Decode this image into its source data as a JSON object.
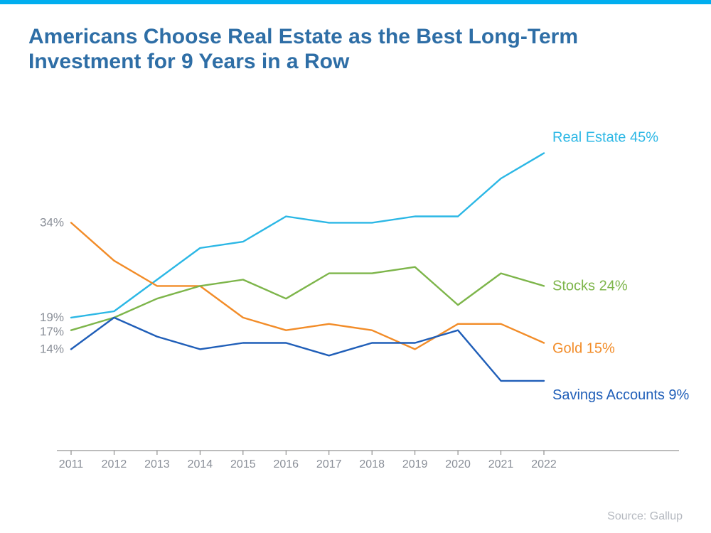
{
  "accent_bar_color": "#00aeef",
  "title": {
    "text": "Americans Choose Real Estate as the Best Long-Term Investment for 9 Years in a Row",
    "color": "#2e6ea6",
    "fontsize_pt": 30
  },
  "chart": {
    "type": "line",
    "years": [
      2011,
      2012,
      2013,
      2014,
      2015,
      2016,
      2017,
      2018,
      2019,
      2020,
      2021,
      2022
    ],
    "y_axis": {
      "min": 0,
      "max": 50,
      "visible": false
    },
    "x_tick_color": "#8a8f98",
    "x_tick_fontsize": 16,
    "x_axis_line_color": "#7a7a7a",
    "line_width": 2.4,
    "start_label_fontsize": 17,
    "end_label_fontsize": 20,
    "series": [
      {
        "id": "real_estate",
        "label": "Real Estate",
        "color": "#2bb7e5",
        "values": [
          19,
          20,
          25,
          30,
          31,
          35,
          34,
          34,
          35,
          35,
          41,
          45
        ],
        "start_label": "19%",
        "end_label": "Real Estate 45%",
        "end_label_dy": -22
      },
      {
        "id": "gold",
        "label": "Gold",
        "color": "#f28c28",
        "values": [
          34,
          28,
          24,
          24,
          19,
          17,
          18,
          17,
          14,
          18,
          18,
          15
        ],
        "start_label": "34%",
        "end_label": "Gold 15%",
        "end_label_dy": 8
      },
      {
        "id": "stocks",
        "label": "Stocks",
        "color": "#7db54a",
        "values": [
          17,
          19,
          22,
          24,
          25,
          22,
          26,
          26,
          27,
          21,
          26,
          24
        ],
        "start_label": "17%",
        "end_label": "Stocks 24%",
        "end_label_dy": 0
      },
      {
        "id": "savings",
        "label": "Savings Accounts",
        "color": "#1f5eb8",
        "values": [
          14,
          19,
          16,
          14,
          15,
          15,
          13,
          15,
          15,
          17,
          9,
          9
        ],
        "start_label": "14%",
        "end_label": "Savings Accounts 9%",
        "end_label_dy": 20
      }
    ]
  },
  "source": {
    "text": "Source: Gallup",
    "color": "#b4b8bf",
    "fontsize_pt": 16
  }
}
